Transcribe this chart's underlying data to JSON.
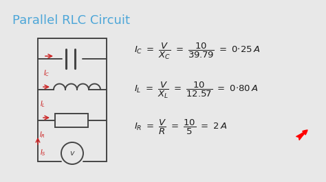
{
  "title": "Parallel RLC Circuit",
  "title_color": "#4da6d8",
  "title_fontsize": 13,
  "bg_color": "#e8e8e8",
  "eq_color": "#1a1a1a",
  "circuit_color": "#444444",
  "label_color": "#cc2222",
  "fig_w": 4.74,
  "fig_h": 2.66,
  "dpi": 100
}
